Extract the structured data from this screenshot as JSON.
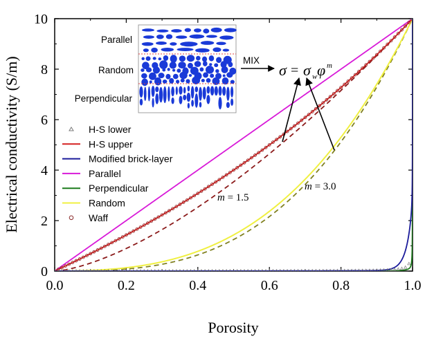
{
  "chart_data": {
    "type": "line",
    "xlabel": "Porosity",
    "ylabel": "Electrical conductivity (S/m)",
    "xlim": [
      0.0,
      1.0
    ],
    "ylim": [
      0,
      10
    ],
    "xticks": [
      "0.0",
      "0.2",
      "0.4",
      "0.6",
      "0.8",
      "1.0"
    ],
    "yticks": [
      "0",
      "2",
      "4",
      "6",
      "8",
      "10"
    ],
    "grid": false,
    "legend_position": "middle-left",
    "fluid_conductivity": 10,
    "solid_conductivity": 0.001,
    "series": [
      {
        "name": "H-S lower",
        "style": "triangle-markers",
        "color": "#7a7a7a",
        "model": "hs_lower"
      },
      {
        "name": "H-S upper",
        "style": "solid",
        "color": "#d42020",
        "model": "hs_upper"
      },
      {
        "name": "Modified brick-layer",
        "style": "solid",
        "color": "#1a1a9a",
        "model": "brick"
      },
      {
        "name": "Parallel",
        "style": "solid",
        "color": "#d81ad8",
        "model": "parallel"
      },
      {
        "name": "Perpendicular",
        "style": "solid",
        "color": "#1a7a1a",
        "model": "perpendicular"
      },
      {
        "name": "Random",
        "style": "solid",
        "color": "#f0f040",
        "model": "random"
      },
      {
        "name": "Waff",
        "style": "circle-markers",
        "color": "#8a2a2a",
        "model": "waff"
      }
    ],
    "archie_curves": [
      {
        "label": "m = 1.5",
        "m": 1.5,
        "color": "#8b1a1a",
        "style": "dashed"
      },
      {
        "label": "m = 3.0",
        "m": 3.0,
        "color": "#808020",
        "style": "dashed"
      }
    ],
    "annotations": {
      "m15_prefix": "m",
      "m15_value": " = 1.5",
      "m30_prefix": "m",
      "m30_value": " = 3.0",
      "mix_label": "MIX",
      "equation_lhs": "σ",
      "equation_eq": "=",
      "equation_sigma": "σ",
      "equation_sub": "w",
      "equation_phi": "φ",
      "equation_sup": "m"
    },
    "inset": {
      "labels": [
        "Parallel",
        "Random",
        "Perpendicular"
      ],
      "ellipse_color": "#1a3ad8",
      "divider_color": "#e04040"
    }
  }
}
